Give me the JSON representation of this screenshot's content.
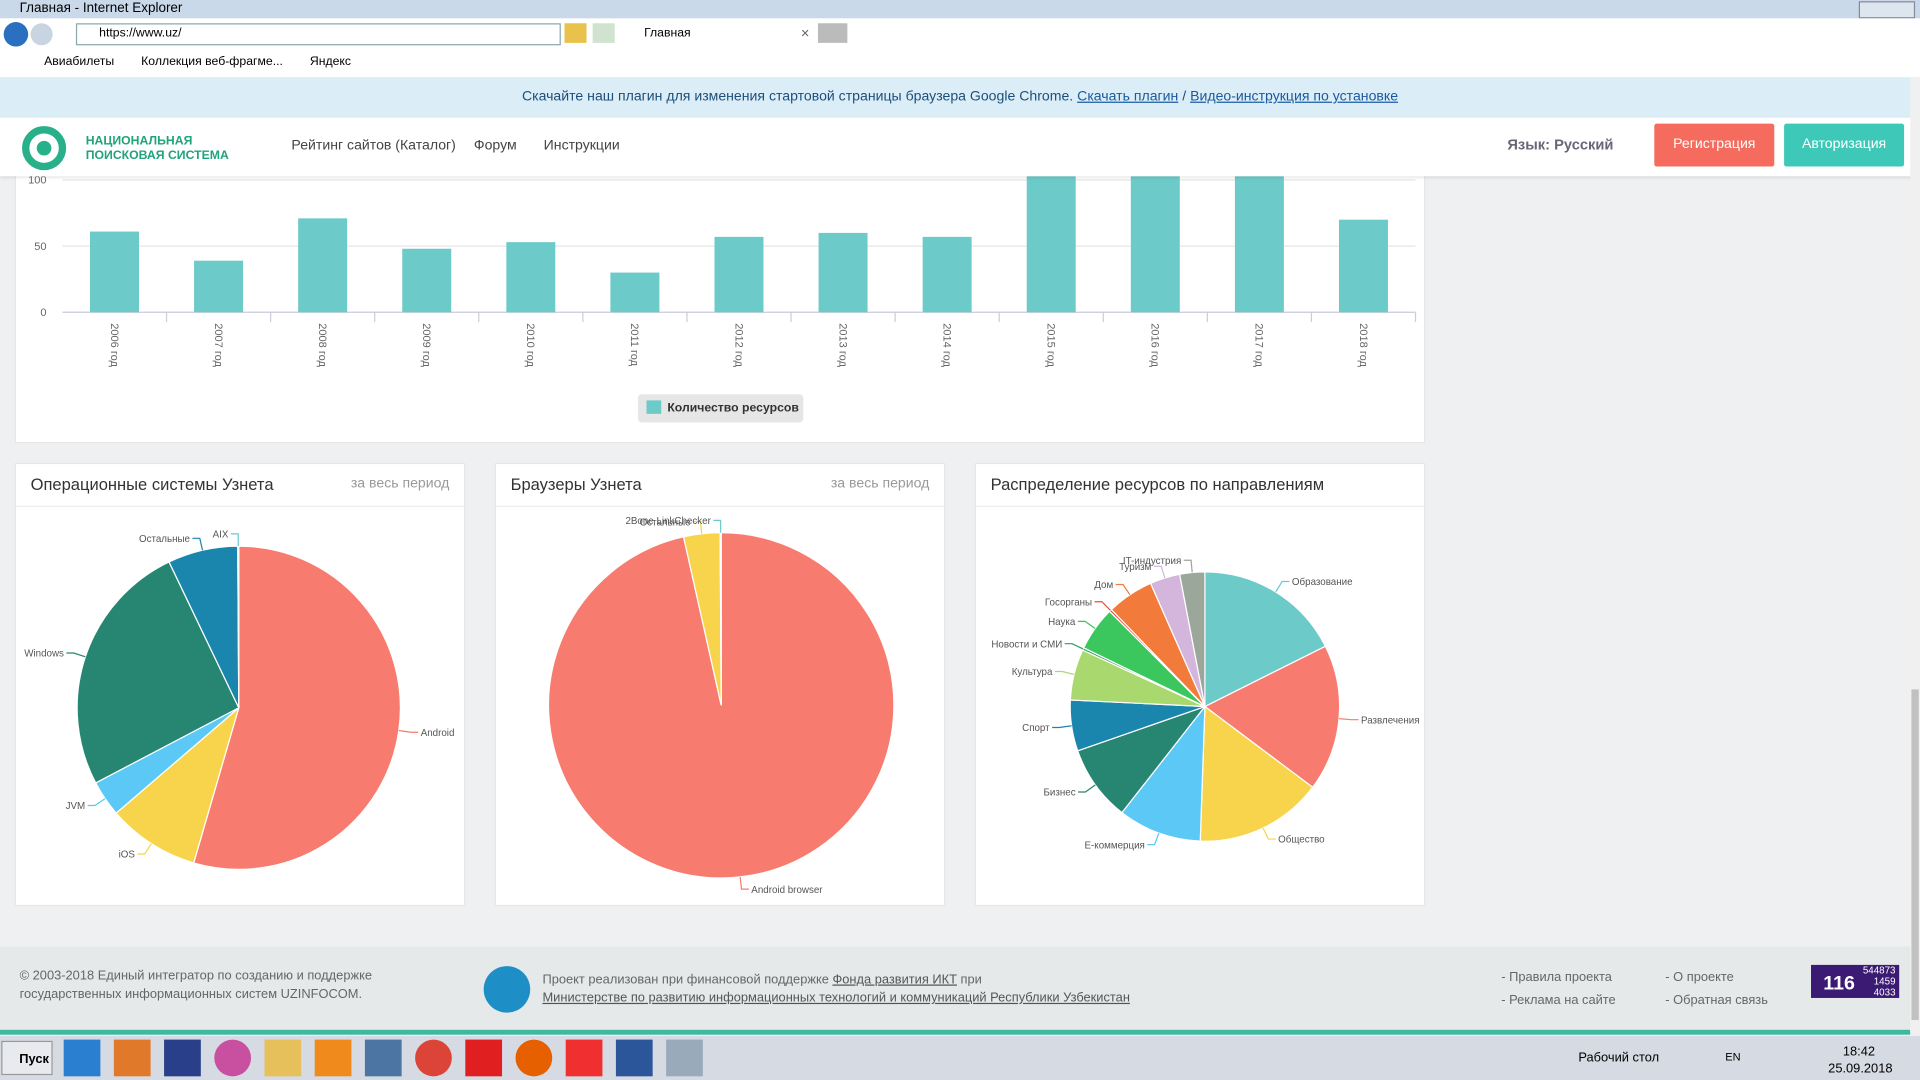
{
  "browser": {
    "window_title": "Главная - Internet Explorer",
    "url": "https://www.uz/",
    "tab": "Главная",
    "favorites": [
      "Авиабилеты",
      "Коллекция веб-фрагме...",
      "Яндекс"
    ]
  },
  "banner": {
    "text": "Скачайте наш плагин для изменения стартовой страницы браузера Google Chrome.",
    "link1": "Скачать плагин",
    "separator": "/",
    "link2": "Видео-инструкция по установке"
  },
  "header": {
    "logo_line1": "НАЦИОНАЛЬНАЯ",
    "logo_line2": "ПОИСКОВАЯ СИСТЕМА",
    "nav": [
      "Рейтинг сайтов (Каталог)",
      "Форум",
      "Инструкции"
    ],
    "language": "Язык: Русский",
    "register": "Регистрация",
    "login": "Авторизация"
  },
  "chart_data": [
    {
      "type": "bar",
      "categories": [
        "2006 год",
        "2007 год",
        "2008 год",
        "2009 год",
        "2010 год",
        "2011 год",
        "2012 год",
        "2013 год",
        "2014 год",
        "2015 год",
        "2016 год",
        "2017 год",
        "2018 год"
      ],
      "series": [
        {
          "name": "Количество ресурсов",
          "color": "#6ccac8",
          "values": [
            61,
            39,
            71,
            48,
            53,
            30,
            57,
            60,
            57,
            110,
            110,
            110,
            70
          ]
        }
      ],
      "ylim": [
        0,
        150
      ],
      "yticks": [
        0,
        50,
        100
      ],
      "grid": true
    },
    {
      "type": "pie",
      "title": "Операционные системы Узнета",
      "subtitle": "за весь период",
      "categories": [
        "Android",
        "iOS",
        "JVM",
        "Windows",
        "Остальные",
        "AIX"
      ],
      "values": [
        54.5,
        9.2,
        3.6,
        25.6,
        7,
        0.1
      ],
      "colors": [
        "#f77b6e",
        "#f7d44c",
        "#5bc8f5",
        "#268672",
        "#1a86ad",
        "#6ccac8"
      ]
    },
    {
      "type": "pie",
      "title": "Браузеры Узнета",
      "subtitle": "за весь период",
      "categories": [
        "Android browser",
        "Остальные",
        "2Bone LinkChecker"
      ],
      "values": [
        96.5,
        3.4,
        0.1
      ],
      "colors": [
        "#f77b6e",
        "#f7d44c",
        "#6ccac8"
      ]
    },
    {
      "type": "pie",
      "title": "Распределение ресурсов по направлениям",
      "categories": [
        "Образование",
        "Развлечения",
        "Общество",
        "Е-коммерция",
        "Бизнес",
        "Спорт",
        "Культура",
        "Новости и СМИ",
        "Наука",
        "Госорганы",
        "Дом",
        "Туризм",
        "IT-индустрия"
      ],
      "values": [
        17.6,
        17.6,
        15.3,
        10,
        9.1,
        6.1,
        6.1,
        0.3,
        5.3,
        0.3,
        5.6,
        3.6,
        3
      ],
      "colors": [
        "#6ccac8",
        "#f77b6e",
        "#f7d44c",
        "#5bc8f5",
        "#268672",
        "#1a86ad",
        "#a8d86e",
        "#2e9e5a",
        "#3cc75e",
        "#e0533d",
        "#f27a3a",
        "#d4b5dc",
        "#9aa79a"
      ]
    }
  ],
  "footer": {
    "copyright": "© 2003-2018 Единый интегратор по созданию и поддержке государственных информационных систем UZINFOCOM.",
    "project_text": "Проект реализован при финансовой поддержке",
    "project_link1": "Фонда развития ИКТ",
    "project_mid": "при",
    "project_link2": "Министерстве по развитию информационных технологий и коммуникаций Республики Узбекистан",
    "links": [
      "- Правила проекта",
      "- О проекте",
      "- Реклама на сайте",
      "- Обратная связь"
    ],
    "counter": [
      "116",
      "544873",
      "1459",
      "4033"
    ]
  },
  "taskbar": {
    "start": "Пуск",
    "desktop": "Рабочий стол",
    "lang": "EN",
    "time": "18:42",
    "date": "25.09.2018"
  }
}
